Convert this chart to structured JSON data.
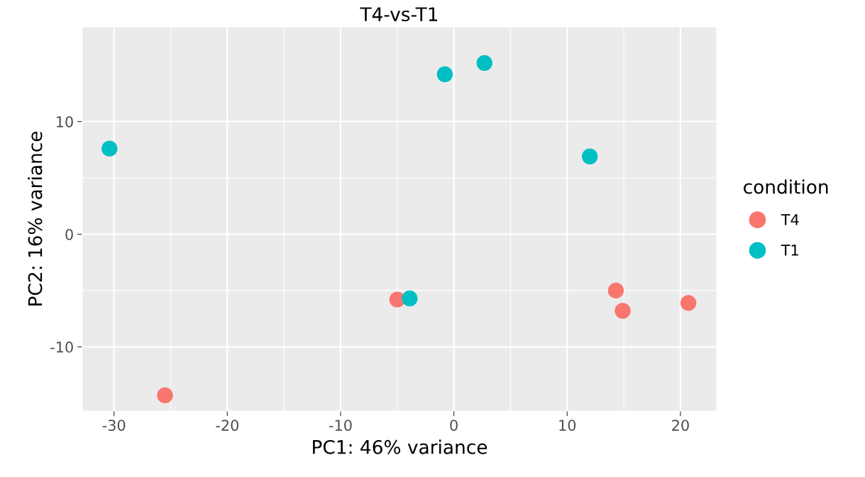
{
  "chart_data": {
    "type": "scatter",
    "title": "T4-vs-T1",
    "xlabel": "PC1: 46% variance",
    "ylabel": "PC2: 16% variance",
    "legend_title": "condition",
    "series": [
      {
        "name": "T4",
        "color": "#f8766d",
        "x": [
          -25.5,
          -5.0,
          14.3,
          14.9,
          20.7
        ],
        "values": [
          -14.3,
          -5.8,
          -5.0,
          -6.8,
          -6.1
        ]
      },
      {
        "name": "T1",
        "color": "#00bfc4",
        "x": [
          -30.4,
          -0.8,
          2.7,
          12.0,
          -3.9
        ],
        "values": [
          7.6,
          14.2,
          15.2,
          6.9,
          -5.7
        ]
      }
    ],
    "xlim": [
      -32.8,
      23.2
    ],
    "ylim": [
      -15.7,
      18.4
    ],
    "xticks": [
      -30,
      -20,
      -10,
      0,
      10,
      20
    ],
    "yticks": [
      -10,
      0,
      10
    ],
    "grid": true,
    "legend": "right",
    "marker": "circle"
  }
}
